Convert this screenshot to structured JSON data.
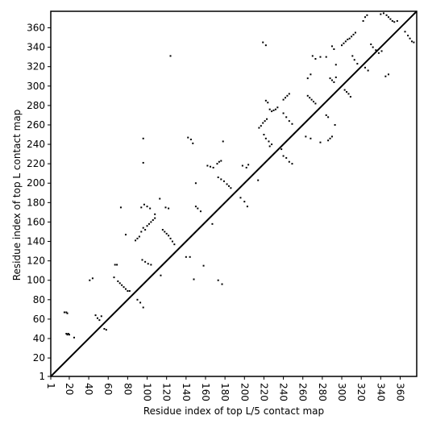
{
  "chart_data": {
    "type": "scatter",
    "title": "",
    "xlabel": "Residue index of top L/5 contact map",
    "ylabel": "Residue index of top L contact map",
    "xlim": [
      1,
      377
    ],
    "ylim": [
      1,
      377
    ],
    "xticks": [
      1,
      20,
      40,
      60,
      80,
      100,
      120,
      140,
      160,
      180,
      200,
      220,
      240,
      260,
      280,
      300,
      320,
      340,
      360
    ],
    "yticks": [
      1,
      20,
      40,
      60,
      80,
      100,
      120,
      140,
      160,
      180,
      200,
      220,
      240,
      260,
      280,
      300,
      320,
      340,
      360
    ],
    "x_tick_rotation": -90,
    "grid": false,
    "legend": "none",
    "diagonal": [
      [
        1,
        1
      ],
      [
        377,
        377
      ]
    ],
    "point_color": "#000000",
    "series": [
      {
        "values": [
          [
            17,
            45
          ],
          [
            18,
            44
          ],
          [
            19,
            45
          ],
          [
            20,
            44
          ],
          [
            15,
            67
          ],
          [
            17,
            67
          ],
          [
            18,
            66
          ],
          [
            25,
            41
          ],
          [
            41,
            100
          ],
          [
            44,
            102
          ],
          [
            47,
            64
          ],
          [
            49,
            61
          ],
          [
            51,
            59
          ],
          [
            53,
            63
          ],
          [
            56,
            50
          ],
          [
            58,
            49
          ],
          [
            67,
            116
          ],
          [
            69,
            116
          ],
          [
            66,
            103
          ],
          [
            70,
            99
          ],
          [
            72,
            97
          ],
          [
            74,
            95
          ],
          [
            76,
            93
          ],
          [
            78,
            91
          ],
          [
            80,
            89
          ],
          [
            82,
            89
          ],
          [
            78,
            147
          ],
          [
            73,
            175
          ],
          [
            88,
            141
          ],
          [
            90,
            143
          ],
          [
            92,
            145
          ],
          [
            94,
            150
          ],
          [
            96,
            154
          ],
          [
            98,
            152
          ],
          [
            100,
            156
          ],
          [
            102,
            158
          ],
          [
            104,
            160
          ],
          [
            106,
            162
          ],
          [
            108,
            164
          ],
          [
            108,
            168
          ],
          [
            94,
            175
          ],
          [
            97,
            178
          ],
          [
            100,
            176
          ],
          [
            103,
            174
          ],
          [
            95,
            121
          ],
          [
            98,
            119
          ],
          [
            101,
            117
          ],
          [
            104,
            116
          ],
          [
            90,
            80
          ],
          [
            93,
            77
          ],
          [
            96,
            72
          ],
          [
            96,
            221
          ],
          [
            96,
            246
          ],
          [
            113,
            184
          ],
          [
            116,
            152
          ],
          [
            118,
            150
          ],
          [
            120,
            148
          ],
          [
            122,
            146
          ],
          [
            124,
            143
          ],
          [
            126,
            140
          ],
          [
            128,
            137
          ],
          [
            119,
            175
          ],
          [
            122,
            174
          ],
          [
            124,
            331
          ],
          [
            114,
            105
          ],
          [
            140,
            124
          ],
          [
            144,
            124
          ],
          [
            142,
            247
          ],
          [
            145,
            245
          ],
          [
            147,
            241
          ],
          [
            150,
            176
          ],
          [
            152,
            174
          ],
          [
            155,
            171
          ],
          [
            158,
            115
          ],
          [
            148,
            101
          ],
          [
            150,
            200
          ],
          [
            162,
            218
          ],
          [
            165,
            217
          ],
          [
            168,
            216
          ],
          [
            172,
            220
          ],
          [
            174,
            222
          ],
          [
            176,
            223
          ],
          [
            173,
            206
          ],
          [
            176,
            204
          ],
          [
            179,
            202
          ],
          [
            182,
            199
          ],
          [
            184,
            197
          ],
          [
            186,
            195
          ],
          [
            178,
            243
          ],
          [
            167,
            158
          ],
          [
            173,
            100
          ],
          [
            177,
            96
          ],
          [
            198,
            218
          ],
          [
            202,
            216
          ],
          [
            204,
            219
          ],
          [
            196,
            185
          ],
          [
            200,
            181
          ],
          [
            203,
            176
          ],
          [
            215,
            257
          ],
          [
            217,
            259
          ],
          [
            219,
            262
          ],
          [
            221,
            264
          ],
          [
            223,
            266
          ],
          [
            219,
            345
          ],
          [
            222,
            342
          ],
          [
            214,
            203
          ],
          [
            222,
            285
          ],
          [
            224,
            283
          ],
          [
            226,
            276
          ],
          [
            228,
            274
          ],
          [
            230,
            275
          ],
          [
            232,
            276
          ],
          [
            234,
            278
          ],
          [
            222,
            246
          ],
          [
            225,
            243
          ],
          [
            228,
            240
          ],
          [
            220,
            250
          ],
          [
            226,
            238
          ],
          [
            240,
            286
          ],
          [
            242,
            288
          ],
          [
            244,
            290
          ],
          [
            246,
            292
          ],
          [
            240,
            272
          ],
          [
            243,
            268
          ],
          [
            246,
            264
          ],
          [
            249,
            261
          ],
          [
            240,
            228
          ],
          [
            243,
            226
          ],
          [
            246,
            222
          ],
          [
            249,
            220
          ],
          [
            238,
            235
          ],
          [
            265,
            290
          ],
          [
            267,
            288
          ],
          [
            269,
            286
          ],
          [
            271,
            284
          ],
          [
            273,
            282
          ],
          [
            265,
            308
          ],
          [
            268,
            312
          ],
          [
            270,
            331
          ],
          [
            273,
            328
          ],
          [
            263,
            248
          ],
          [
            268,
            246
          ],
          [
            286,
            244
          ],
          [
            288,
            246
          ],
          [
            290,
            248
          ],
          [
            284,
            270
          ],
          [
            286,
            268
          ],
          [
            288,
            308
          ],
          [
            290,
            306
          ],
          [
            292,
            304
          ],
          [
            294,
            309
          ],
          [
            278,
            330
          ],
          [
            284,
            330
          ],
          [
            290,
            341
          ],
          [
            292,
            338
          ],
          [
            294,
            322
          ],
          [
            278,
            242
          ],
          [
            293,
            260
          ],
          [
            300,
            342
          ],
          [
            302,
            344
          ],
          [
            304,
            346
          ],
          [
            306,
            348
          ],
          [
            308,
            349
          ],
          [
            310,
            351
          ],
          [
            312,
            353
          ],
          [
            314,
            355
          ],
          [
            303,
            296
          ],
          [
            305,
            294
          ],
          [
            307,
            292
          ],
          [
            309,
            289
          ],
          [
            311,
            331
          ],
          [
            313,
            327
          ],
          [
            316,
            323
          ],
          [
            322,
            367
          ],
          [
            324,
            371
          ],
          [
            326,
            373
          ],
          [
            324,
            319
          ],
          [
            327,
            316
          ],
          [
            330,
            343
          ],
          [
            332,
            340
          ],
          [
            335,
            337
          ],
          [
            338,
            334
          ],
          [
            341,
            336
          ],
          [
            340,
            374
          ],
          [
            343,
            375
          ],
          [
            345,
            310
          ],
          [
            348,
            312
          ],
          [
            346,
            373
          ],
          [
            348,
            371
          ],
          [
            350,
            369
          ],
          [
            352,
            367
          ],
          [
            354,
            366
          ],
          [
            357,
            367
          ],
          [
            365,
            356
          ],
          [
            368,
            352
          ],
          [
            370,
            349
          ],
          [
            372,
            346
          ],
          [
            374,
            345
          ]
        ]
      }
    ]
  }
}
